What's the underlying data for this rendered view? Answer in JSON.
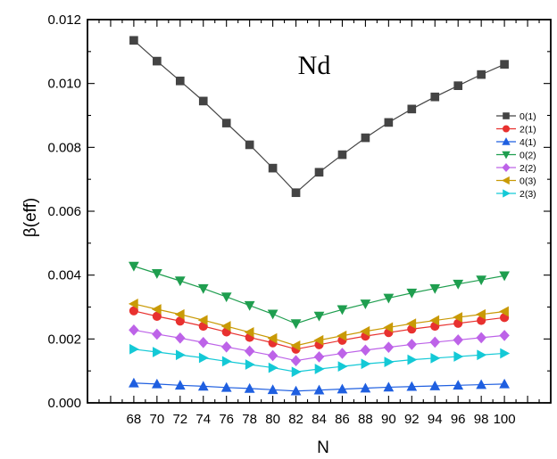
{
  "chart_data": {
    "type": "line",
    "annotation": "Nd",
    "xlabel": "N",
    "ylabel": "β(eff)",
    "x": [
      68,
      70,
      72,
      74,
      76,
      78,
      80,
      82,
      84,
      86,
      88,
      90,
      92,
      94,
      96,
      98,
      100
    ],
    "xticks": [
      "68",
      "70",
      "72",
      "74",
      "76",
      "78",
      "80",
      "82",
      "84",
      "86",
      "88",
      "90",
      "92",
      "94",
      "96",
      "98",
      "100"
    ],
    "xlim": [
      64,
      104
    ],
    "ylim": [
      0,
      0.012
    ],
    "yticks": [
      "0.000",
      "0.002",
      "0.004",
      "0.006",
      "0.008",
      "0.010",
      "0.012"
    ],
    "grid": false,
    "legend_position": "right",
    "series": [
      {
        "name": "0(1)",
        "color": "#444444",
        "marker": "square",
        "values": [
          0.01135,
          0.0107,
          0.01008,
          0.00945,
          0.00876,
          0.00808,
          0.00735,
          0.00658,
          0.00722,
          0.00777,
          0.0083,
          0.00878,
          0.0092,
          0.00958,
          0.00993,
          0.01028,
          0.0106
        ]
      },
      {
        "name": "2(1)",
        "color": "#e8312f",
        "marker": "circle",
        "values": [
          0.00288,
          0.00271,
          0.00256,
          0.0024,
          0.00222,
          0.00205,
          0.00188,
          0.00168,
          0.00182,
          0.00196,
          0.00209,
          0.0022,
          0.00231,
          0.0024,
          0.00249,
          0.00258,
          0.00267
        ]
      },
      {
        "name": "4(1)",
        "color": "#1f5fe0",
        "marker": "triangle-up",
        "values": [
          0.00062,
          0.00059,
          0.00055,
          0.00052,
          0.00048,
          0.00045,
          0.00041,
          0.00037,
          0.0004,
          0.00043,
          0.00046,
          0.00049,
          0.00051,
          0.00053,
          0.00055,
          0.00057,
          0.00059
        ]
      },
      {
        "name": "0(2)",
        "color": "#1f9e4f",
        "marker": "triangle-down",
        "values": [
          0.00428,
          0.00405,
          0.00382,
          0.00358,
          0.00332,
          0.00305,
          0.00278,
          0.00248,
          0.00272,
          0.00292,
          0.0031,
          0.00328,
          0.00344,
          0.00358,
          0.00372,
          0.00385,
          0.00398
        ]
      },
      {
        "name": "2(2)",
        "color": "#bd63e8",
        "marker": "diamond",
        "values": [
          0.00228,
          0.00215,
          0.00203,
          0.00189,
          0.00175,
          0.00162,
          0.00148,
          0.00132,
          0.00144,
          0.00155,
          0.00165,
          0.00174,
          0.00183,
          0.0019,
          0.00197,
          0.00204,
          0.00211
        ]
      },
      {
        "name": "0(3)",
        "color": "#c99a06",
        "marker": "triangle-left",
        "values": [
          0.0031,
          0.00293,
          0.00277,
          0.00259,
          0.0024,
          0.00221,
          0.00202,
          0.00179,
          0.00196,
          0.0021,
          0.00224,
          0.00236,
          0.00248,
          0.00258,
          0.00268,
          0.00277,
          0.00286
        ]
      },
      {
        "name": "2(3)",
        "color": "#14c9d6",
        "marker": "triangle-right",
        "values": [
          0.00168,
          0.00159,
          0.0015,
          0.00141,
          0.0013,
          0.0012,
          0.0011,
          0.00097,
          0.00106,
          0.00114,
          0.00122,
          0.00128,
          0.00135,
          0.0014,
          0.00145,
          0.0015,
          0.00155
        ]
      }
    ]
  }
}
